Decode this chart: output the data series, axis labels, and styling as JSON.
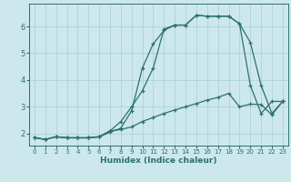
{
  "xlabel": "Humidex (Indice chaleur)",
  "background_color": "#cce8ec",
  "grid_color": "#aacdd4",
  "line_color": "#2d7070",
  "xlim": [
    -0.5,
    23.5
  ],
  "ylim": [
    1.55,
    6.85
  ],
  "yticks": [
    2,
    3,
    4,
    5,
    6
  ],
  "xticks": [
    0,
    1,
    2,
    3,
    4,
    5,
    6,
    7,
    8,
    9,
    10,
    11,
    12,
    13,
    14,
    15,
    16,
    17,
    18,
    19,
    20,
    21,
    22,
    23
  ],
  "line1_x": [
    0,
    1,
    2,
    3,
    4,
    5,
    6,
    7,
    8,
    9,
    10,
    11,
    12,
    13,
    14,
    15,
    16,
    17,
    18,
    19,
    20,
    21,
    22,
    23
  ],
  "line1_y": [
    1.85,
    1.78,
    1.88,
    1.84,
    1.84,
    1.84,
    1.88,
    2.05,
    2.2,
    2.85,
    4.45,
    5.35,
    5.85,
    6.05,
    6.05,
    6.42,
    6.38,
    6.38,
    6.38,
    6.1,
    3.8,
    2.75,
    3.2,
    3.2
  ],
  "line2_x": [
    0,
    1,
    2,
    3,
    4,
    5,
    6,
    7,
    8,
    9,
    10,
    11,
    12,
    13,
    14,
    15,
    16,
    17,
    18,
    19,
    20,
    21,
    22,
    23
  ],
  "line2_y": [
    1.85,
    1.78,
    1.88,
    1.84,
    1.84,
    1.84,
    1.88,
    2.1,
    2.45,
    3.0,
    3.6,
    4.45,
    5.9,
    6.05,
    6.05,
    6.42,
    6.38,
    6.38,
    6.38,
    6.1,
    5.4,
    3.8,
    2.75,
    3.2
  ],
  "line3_x": [
    0,
    1,
    2,
    3,
    4,
    5,
    6,
    7,
    8,
    9,
    10,
    11,
    12,
    13,
    14,
    15,
    16,
    17,
    18,
    19,
    20,
    21,
    22,
    23
  ],
  "line3_y": [
    1.85,
    1.78,
    1.88,
    1.84,
    1.84,
    1.84,
    1.88,
    2.1,
    2.15,
    2.25,
    2.45,
    2.6,
    2.75,
    2.88,
    3.0,
    3.12,
    3.25,
    3.35,
    3.5,
    3.0,
    3.1,
    3.08,
    2.7,
    3.2
  ]
}
